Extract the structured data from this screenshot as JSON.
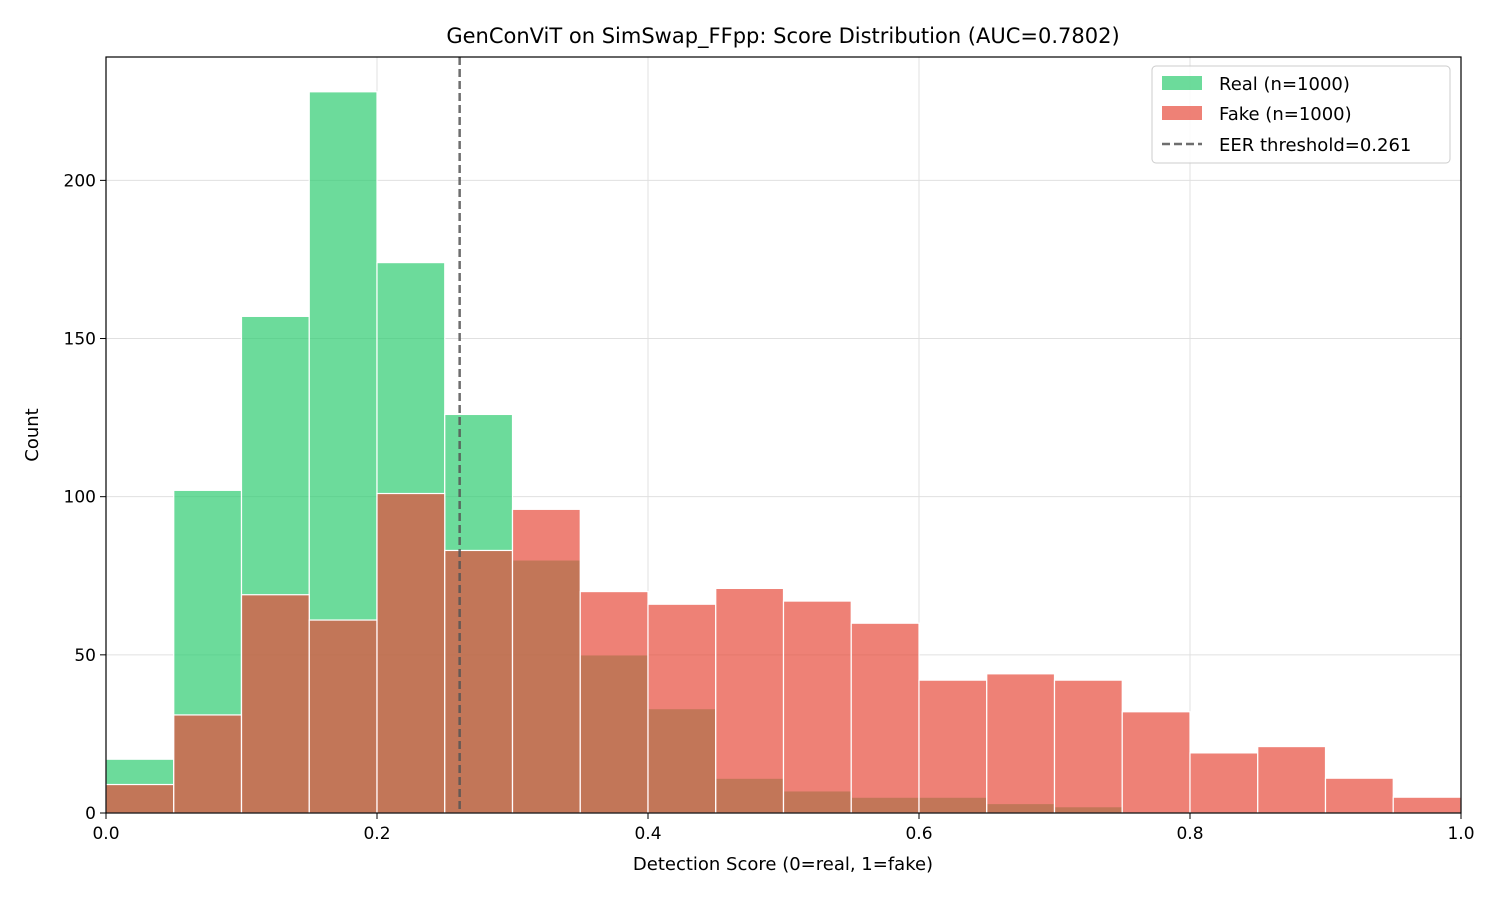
{
  "chart_data": {
    "type": "bar",
    "subtype": "overlapping-histogram",
    "title": "GenConViT on SimSwap_FFpp: Score Distribution (AUC=0.7802)",
    "xlabel": "Detection Score (0=real, 1=fake)",
    "ylabel": "Count",
    "xlim": [
      0,
      1
    ],
    "ylim": [
      0,
      239
    ],
    "xticks": [
      "0.0",
      "0.2",
      "0.4",
      "0.6",
      "0.8",
      "1.0"
    ],
    "yticks": [
      "0",
      "50",
      "100",
      "150",
      "200"
    ],
    "grid": true,
    "legend_position": "top-right",
    "bin_edges": [
      0,
      0.05,
      0.1,
      0.15,
      0.2,
      0.25,
      0.3,
      0.35,
      0.4,
      0.45,
      0.5,
      0.55,
      0.6,
      0.65,
      0.7,
      0.75,
      0.8,
      0.85,
      0.9,
      0.95,
      1.0
    ],
    "series": [
      {
        "name": "Real (n=1000)",
        "color": "#2ecc71",
        "values": [
          17,
          102,
          157,
          228,
          174,
          126,
          80,
          50,
          33,
          11,
          7,
          5,
          5,
          3,
          2,
          0,
          0,
          0,
          0,
          0
        ]
      },
      {
        "name": "Fake (n=1000)",
        "color": "#e74c3c",
        "values": [
          9,
          31,
          69,
          61,
          101,
          83,
          96,
          70,
          66,
          71,
          67,
          60,
          42,
          44,
          42,
          32,
          19,
          21,
          11,
          5
        ]
      }
    ],
    "threshold": {
      "label": "EER threshold=0.261",
      "value": 0.261,
      "color": "#555555"
    }
  }
}
